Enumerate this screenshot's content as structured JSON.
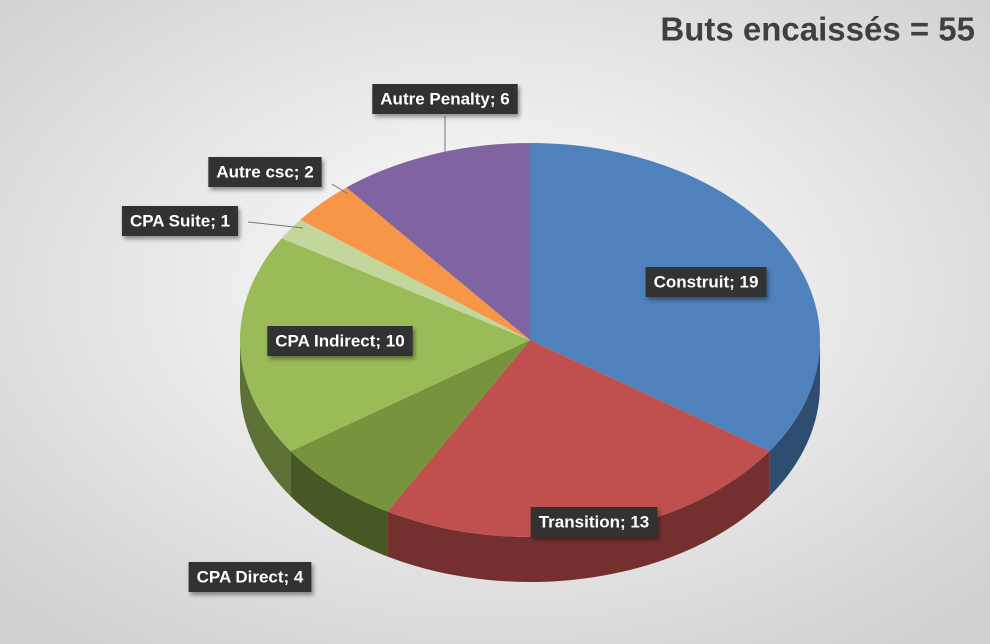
{
  "chart_data": {
    "type": "pie",
    "title": "Buts encaissés = 55",
    "values": [
      19,
      13,
      4,
      10,
      1,
      2,
      6
    ],
    "value_labels": [
      "Construit; 19",
      "Transition; 13",
      "CPA Direct; 4",
      "CPA Indirect; 10",
      "CPA Suite; 1",
      "Autre csc; 2",
      "Autre Penalty; 6"
    ],
    "colors": [
      "#4f81bd",
      "#c0504d",
      "#77933c",
      "#9bbb59",
      "#c3d69b",
      "#f79646",
      "#8064a2"
    ]
  }
}
